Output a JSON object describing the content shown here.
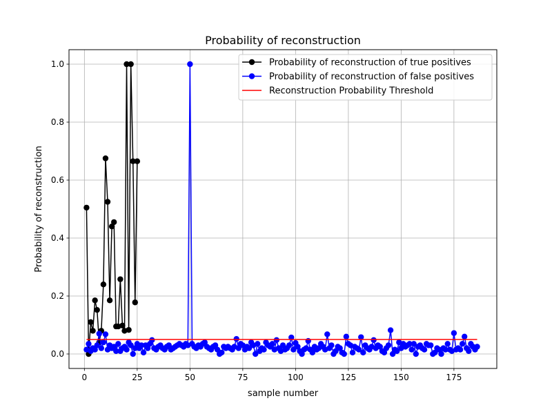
{
  "chart_data": {
    "type": "line",
    "title": "Probability of reconstruction",
    "xlabel": "sample number",
    "ylabel": "Probability of reconstruction",
    "xlim": [
      -7.3,
      195.3
    ],
    "ylim": [
      -0.05,
      1.05
    ],
    "xticks": [
      0,
      25,
      50,
      75,
      100,
      125,
      150,
      175
    ],
    "yticks": [
      0.0,
      0.2,
      0.4,
      0.6,
      0.8,
      1.0
    ],
    "ytick_labels": [
      "0.0",
      "0.2",
      "0.4",
      "0.6",
      "0.8",
      "1.0"
    ],
    "grid": true,
    "legend_position": "top-right",
    "series": [
      {
        "name": "Probability of reconstruction of true positives",
        "color": "#000000",
        "marker": "circle",
        "x": [
          1,
          2,
          3,
          4,
          5,
          6,
          7,
          8,
          9,
          10,
          11,
          12,
          13,
          14,
          15,
          16,
          17,
          18,
          19,
          20,
          21,
          22,
          23,
          24,
          25
        ],
        "y": [
          0.505,
          0.0,
          0.11,
          0.08,
          0.185,
          0.152,
          0.04,
          0.08,
          0.24,
          0.675,
          0.525,
          0.185,
          0.44,
          0.455,
          0.095,
          0.095,
          0.258,
          0.098,
          0.08,
          1.0,
          0.083,
          1.0,
          0.665,
          0.178,
          0.665
        ]
      },
      {
        "name": "Probability of reconstruction of false positives",
        "color": "#0000ff",
        "marker": "circle",
        "x": [
          1,
          2,
          3,
          4,
          5,
          6,
          7,
          8,
          9,
          10,
          11,
          12,
          13,
          14,
          15,
          16,
          17,
          18,
          19,
          20,
          21,
          22,
          23,
          24,
          25,
          26,
          27,
          28,
          29,
          30,
          31,
          32,
          33,
          34,
          35,
          36,
          37,
          38,
          39,
          40,
          41,
          42,
          43,
          44,
          45,
          46,
          47,
          48,
          49,
          50,
          51,
          52,
          53,
          54,
          55,
          56,
          57,
          58,
          59,
          60,
          61,
          62,
          63,
          64,
          65,
          66,
          67,
          68,
          69,
          70,
          71,
          72,
          73,
          74,
          75,
          76,
          77,
          78,
          79,
          80,
          81,
          82,
          83,
          84,
          85,
          86,
          87,
          88,
          89,
          90,
          91,
          92,
          93,
          94,
          95,
          96,
          97,
          98,
          99,
          100,
          101,
          102,
          103,
          104,
          105,
          106,
          107,
          108,
          109,
          110,
          111,
          112,
          113,
          114,
          115,
          116,
          117,
          118,
          119,
          120,
          121,
          122,
          123,
          124,
          125,
          126,
          127,
          128,
          129,
          130,
          131,
          132,
          133,
          134,
          135,
          136,
          137,
          138,
          139,
          140,
          141,
          142,
          143,
          144,
          145,
          146,
          147,
          148,
          149,
          150,
          151,
          152,
          153,
          154,
          155,
          156,
          157,
          158,
          159,
          160,
          161,
          162,
          163,
          164,
          165,
          166,
          167,
          168,
          169,
          170,
          171,
          172,
          173,
          174,
          175,
          176,
          177,
          178,
          179,
          180,
          181,
          182,
          183,
          184,
          185,
          186
        ],
        "y": [
          0.015,
          0.035,
          0.01,
          0.02,
          0.015,
          0.03,
          0.07,
          0.02,
          0.04,
          0.068,
          0.015,
          0.03,
          0.02,
          0.025,
          0.01,
          0.035,
          0.01,
          0.02,
          0.025,
          0.015,
          0.04,
          0.03,
          0.0,
          0.02,
          0.035,
          0.02,
          0.03,
          0.005,
          0.03,
          0.02,
          0.035,
          0.048,
          0.02,
          0.015,
          0.025,
          0.03,
          0.02,
          0.015,
          0.025,
          0.03,
          0.015,
          0.02,
          0.025,
          0.03,
          0.035,
          0.03,
          0.025,
          0.035,
          0.03,
          1.0,
          0.035,
          0.025,
          0.02,
          0.03,
          0.025,
          0.035,
          0.04,
          0.025,
          0.02,
          0.015,
          0.025,
          0.03,
          0.015,
          0.0,
          0.005,
          0.025,
          0.02,
          0.025,
          0.02,
          0.015,
          0.025,
          0.052,
          0.02,
          0.035,
          0.03,
          0.015,
          0.025,
          0.02,
          0.04,
          0.03,
          0.0,
          0.035,
          0.01,
          0.02,
          0.015,
          0.04,
          0.03,
          0.025,
          0.035,
          0.015,
          0.048,
          0.02,
          0.01,
          0.03,
          0.015,
          0.02,
          0.03,
          0.057,
          0.015,
          0.038,
          0.025,
          0.01,
          0.0,
          0.015,
          0.02,
          0.045,
          0.015,
          0.005,
          0.025,
          0.015,
          0.02,
          0.035,
          0.025,
          0.015,
          0.068,
          0.02,
          0.03,
          0.0,
          0.01,
          0.025,
          0.02,
          0.005,
          0.0,
          0.06,
          0.035,
          0.03,
          0.005,
          0.025,
          0.02,
          0.015,
          0.058,
          0.005,
          0.03,
          0.02,
          0.015,
          0.025,
          0.048,
          0.02,
          0.03,
          0.025,
          0.01,
          0.005,
          0.02,
          0.03,
          0.082,
          0.0,
          0.015,
          0.01,
          0.04,
          0.02,
          0.035,
          0.025,
          0.03,
          0.035,
          0.015,
          0.035,
          0.0,
          0.025,
          0.03,
          0.02,
          0.015,
          0.035,
          0.03,
          0.03,
          0.0,
          0.005,
          0.02,
          0.015,
          0.0,
          0.02,
          0.015,
          0.035,
          0.015,
          0.01,
          0.072,
          0.015,
          0.02,
          0.015,
          0.035,
          0.06,
          0.02,
          0.01,
          0.035,
          0.025,
          0.015,
          0.025
        ]
      },
      {
        "name": "Reconstruction Probability Threshold",
        "color": "#ff0000",
        "marker": "none",
        "x": [
          1,
          186
        ],
        "y": [
          0.05,
          0.05
        ]
      }
    ]
  }
}
